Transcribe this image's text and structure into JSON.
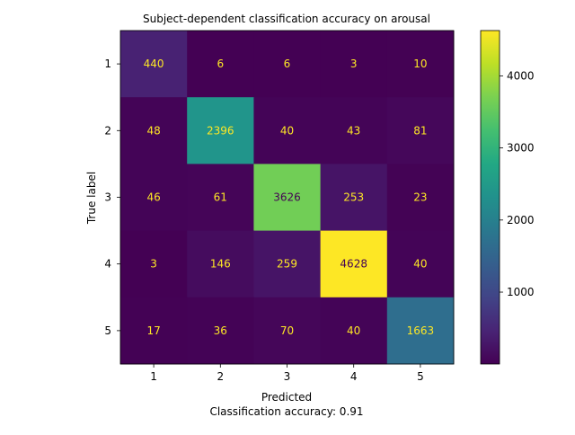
{
  "chart_data": {
    "type": "heatmap",
    "title": "Subject-dependent classification accuracy on arousal",
    "xlabel": "Predicted",
    "ylabel": "True label",
    "caption": "Classification accuracy: 0.91",
    "x_categories": [
      "1",
      "2",
      "3",
      "4",
      "5"
    ],
    "y_categories": [
      "1",
      "2",
      "3",
      "4",
      "5"
    ],
    "values": [
      [
        440,
        6,
        6,
        3,
        10
      ],
      [
        48,
        2396,
        40,
        43,
        81
      ],
      [
        46,
        61,
        3626,
        253,
        23
      ],
      [
        3,
        146,
        259,
        4628,
        40
      ],
      [
        17,
        36,
        70,
        40,
        1663
      ]
    ],
    "colormap": "viridis",
    "colorbar": {
      "range": [
        3,
        4628
      ],
      "ticks": [
        "1000",
        "2000",
        "3000",
        "4000"
      ]
    },
    "colors": {
      "light_text": "#fde725",
      "dark_text": "#440154"
    }
  }
}
